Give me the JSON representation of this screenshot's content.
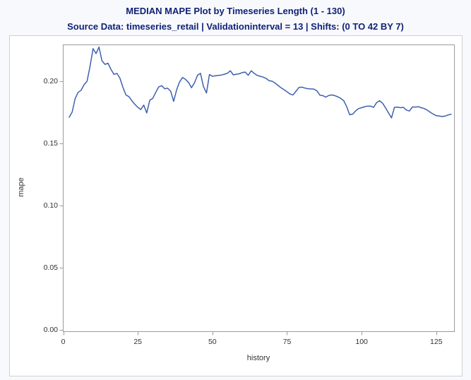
{
  "colors": {
    "page_background": "#f8f9fd",
    "figure_background": "#ffffff",
    "figure_border": "#cfd0d4",
    "title_text": "#112277",
    "axis_text": "#333336",
    "axis_line": "#9b9b9b",
    "series_line": "#3e60ad"
  },
  "chart_data": {
    "type": "line",
    "title": "MEDIAN MAPE Plot by Timeseries Length (1 - 130)",
    "subtitle": "Source Data: timeseries_retail | Validationinterval = 13 | Shifts: (0 TO 42 BY 7)",
    "xlabel": "history",
    "ylabel": "mape",
    "xlim": [
      0,
      131
    ],
    "ylim": [
      0,
      0.229
    ],
    "xticks": [
      0,
      25,
      50,
      75,
      100,
      125
    ],
    "yticks": [
      0.0,
      0.05,
      0.1,
      0.15,
      0.2
    ],
    "xtick_labels": [
      "0",
      "25",
      "50",
      "75",
      "100",
      "125"
    ],
    "ytick_labels": [
      "0.00",
      "0.05",
      "0.10",
      "0.15",
      "0.20"
    ],
    "grid": false,
    "legend_position": "none",
    "series": [
      {
        "name": "MEDIAN mape",
        "x": [
          2,
          3,
          4,
          5,
          6,
          7,
          8,
          9,
          10,
          11,
          12,
          13,
          14,
          15,
          16,
          17,
          18,
          19,
          20,
          21,
          22,
          23,
          24,
          25,
          26,
          27,
          28,
          29,
          30,
          31,
          32,
          33,
          34,
          35,
          36,
          37,
          38,
          39,
          40,
          41,
          42,
          43,
          44,
          45,
          46,
          47,
          48,
          49,
          50,
          51,
          52,
          53,
          54,
          55,
          56,
          57,
          58,
          59,
          60,
          61,
          62,
          63,
          64,
          65,
          66,
          67,
          68,
          69,
          70,
          71,
          72,
          73,
          74,
          75,
          76,
          77,
          78,
          79,
          80,
          81,
          82,
          83,
          84,
          85,
          86,
          87,
          88,
          89,
          90,
          91,
          92,
          93,
          94,
          95,
          96,
          97,
          98,
          99,
          100,
          101,
          102,
          103,
          104,
          105,
          106,
          107,
          108,
          109,
          110,
          111,
          112,
          113,
          114,
          115,
          116,
          117,
          118,
          119,
          120,
          121,
          122,
          123,
          124,
          125,
          126,
          127,
          128,
          129,
          130
        ],
        "y": [
          0.171,
          0.1752,
          0.186,
          0.191,
          0.1928,
          0.1972,
          0.2,
          0.212,
          0.2262,
          0.2222,
          0.2275,
          0.2165,
          0.2135,
          0.2145,
          0.2096,
          0.2055,
          0.2063,
          0.2025,
          0.1952,
          0.189,
          0.1876,
          0.1843,
          0.1815,
          0.179,
          0.1772,
          0.1808,
          0.1745,
          0.1848,
          0.1862,
          0.191,
          0.1954,
          0.1964,
          0.194,
          0.1944,
          0.192,
          0.1838,
          0.193,
          0.1995,
          0.203,
          0.2015,
          0.199,
          0.1948,
          0.1988,
          0.2048,
          0.2064,
          0.1958,
          0.1905,
          0.2054,
          0.204,
          0.2044,
          0.2047,
          0.205,
          0.2056,
          0.2064,
          0.2084,
          0.2051,
          0.2056,
          0.206,
          0.207,
          0.2074,
          0.2048,
          0.2084,
          0.2063,
          0.2047,
          0.204,
          0.2033,
          0.2022,
          0.2004,
          0.2,
          0.1985,
          0.1966,
          0.1947,
          0.1932,
          0.1915,
          0.1898,
          0.189,
          0.192,
          0.195,
          0.1952,
          0.1945,
          0.194,
          0.1938,
          0.1937,
          0.1922,
          0.1888,
          0.1884,
          0.1872,
          0.1886,
          0.189,
          0.1884,
          0.1875,
          0.1862,
          0.1843,
          0.1795,
          0.173,
          0.1736,
          0.1762,
          0.178,
          0.1787,
          0.1795,
          0.18,
          0.18,
          0.179,
          0.1828,
          0.1843,
          0.1824,
          0.1786,
          0.1745,
          0.1705,
          0.179,
          0.1792,
          0.1787,
          0.179,
          0.1768,
          0.176,
          0.1793,
          0.1792,
          0.1795,
          0.1787,
          0.178,
          0.1767,
          0.175,
          0.1735,
          0.1723,
          0.172,
          0.1716,
          0.172,
          0.1729,
          0.1734
        ]
      }
    ]
  }
}
